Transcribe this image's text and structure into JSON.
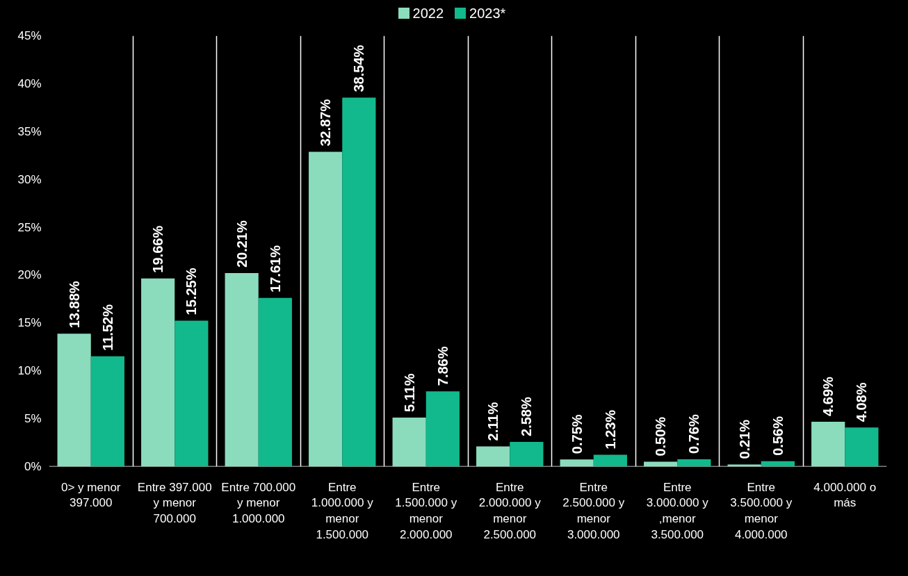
{
  "chart_data": {
    "type": "bar",
    "categories": [
      "0> y menor 397.000",
      "Entre 397.000 y menor 700.000",
      "Entre 700.000 y menor 1.000.000",
      "Entre 1.000.000 y menor 1.500.000",
      "Entre 1.500.000 y menor 2.000.000",
      "Entre 2.000.000 y menor 2.500.000",
      "Entre 2.500.000 y menor 3.000.000",
      "Entre 3.000.000 y ,menor 3.500.000",
      "Entre 3.500.000 y menor 4.000.000",
      "4.000.000 o más"
    ],
    "series": [
      {
        "name": "2022",
        "color": "#8adcbd",
        "values": [
          13.88,
          19.66,
          20.21,
          32.87,
          5.11,
          2.11,
          0.75,
          0.5,
          0.21,
          4.69
        ],
        "value_labels": [
          "13.88%",
          "19.66%",
          "20.21%",
          "32.87%",
          "5.11%",
          "2.11%",
          "0.75%",
          "0.50%",
          "0.21%",
          "4.69%"
        ]
      },
      {
        "name": "2023*",
        "color": "#12b98c",
        "values": [
          11.52,
          15.25,
          17.61,
          38.54,
          7.86,
          2.58,
          1.23,
          0.76,
          0.56,
          4.08
        ],
        "value_labels": [
          "11.52%",
          "15.25%",
          "17.61%",
          "38.54%",
          "7.86%",
          "2.58%",
          "1.23%",
          "0.76%",
          "0.56%",
          "4.08%"
        ]
      }
    ],
    "ylim": [
      0,
      45
    ],
    "yticks": [
      {
        "value": 0,
        "label": "0%"
      },
      {
        "value": 5,
        "label": "5%"
      },
      {
        "value": 10,
        "label": "10%"
      },
      {
        "value": 15,
        "label": "15%"
      },
      {
        "value": 20,
        "label": "20%"
      },
      {
        "value": 25,
        "label": "25%"
      },
      {
        "value": 30,
        "label": "30%"
      },
      {
        "value": 35,
        "label": "35%"
      },
      {
        "value": 40,
        "label": "40%"
      },
      {
        "value": 45,
        "label": "45%"
      }
    ],
    "grid": "x",
    "legend": "top"
  }
}
